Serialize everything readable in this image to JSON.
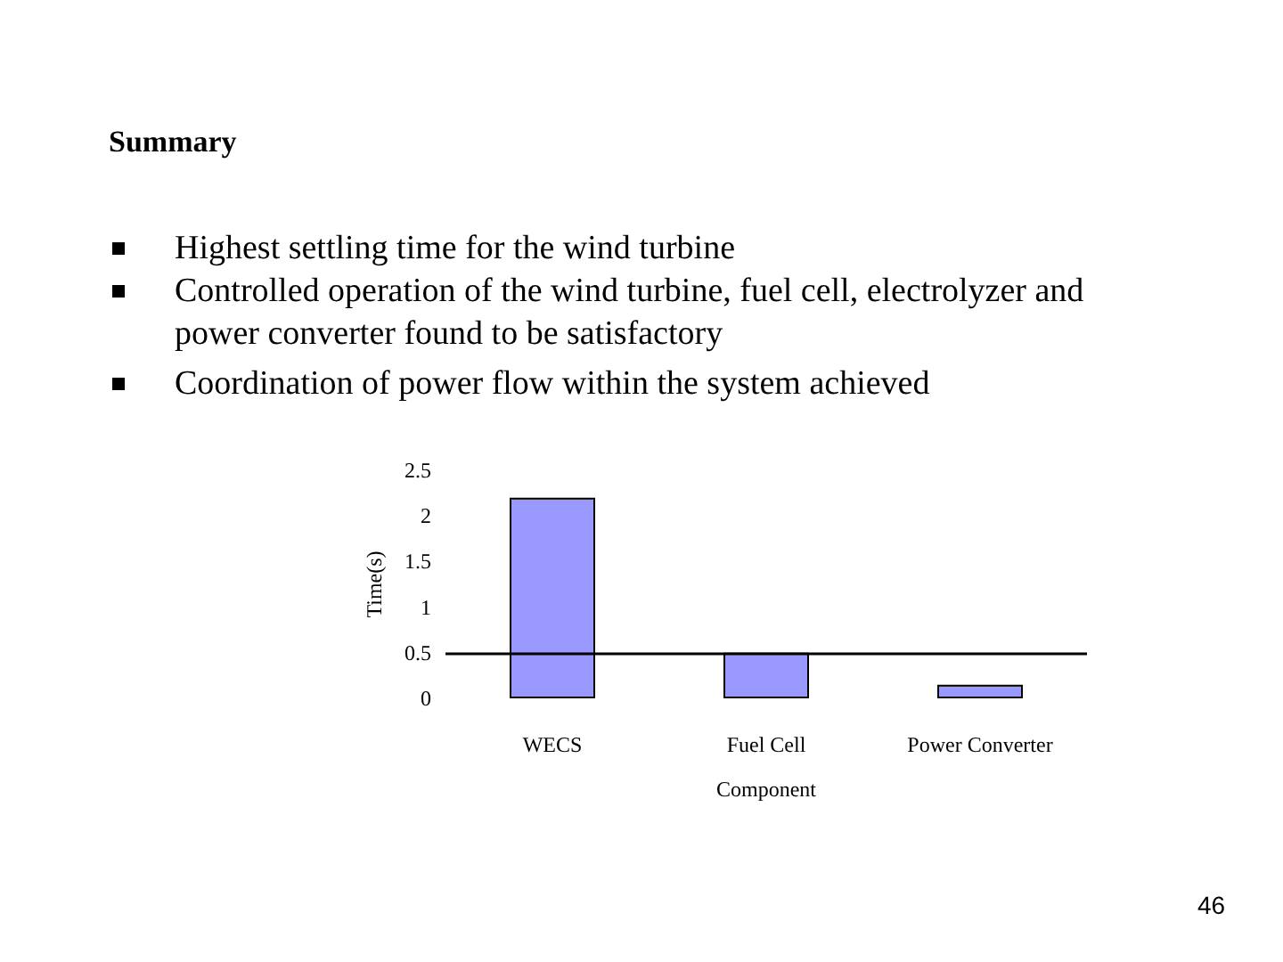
{
  "chart_data": {
    "type": "bar",
    "title": "Summary",
    "annotations": [
      "Highest settling time for the wind turbine",
      "Controlled operation of the wind turbine, fuel cell, electrolyzer and power converter found to be satisfactory",
      "Coordination of power flow within the system achieved",
      "46"
    ],
    "categories": [
      "WECS",
      "Fuel Cell",
      "Power Converter"
    ],
    "values": [
      2.2,
      0.5,
      0.15
    ],
    "color": "#9999ff",
    "xlabel": "Component",
    "ylabel": "Time(s)",
    "ylim": [
      0,
      2.5
    ],
    "yticks": [
      0,
      0.5,
      1,
      1.5,
      2,
      2.5
    ],
    "grid": false,
    "ref_lines": [
      {
        "axis": "y",
        "value": 0.5,
        "color": "#000000"
      }
    ]
  }
}
